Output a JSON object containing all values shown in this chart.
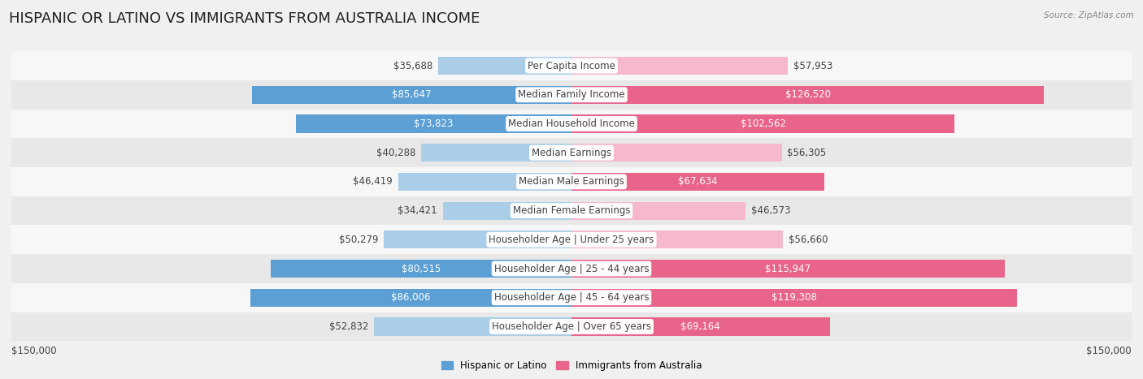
{
  "title": "HISPANIC OR LATINO VS IMMIGRANTS FROM AUSTRALIA INCOME",
  "source": "Source: ZipAtlas.com",
  "categories": [
    "Per Capita Income",
    "Median Family Income",
    "Median Household Income",
    "Median Earnings",
    "Median Male Earnings",
    "Median Female Earnings",
    "Householder Age | Under 25 years",
    "Householder Age | 25 - 44 years",
    "Householder Age | 45 - 64 years",
    "Householder Age | Over 65 years"
  ],
  "hispanic_values": [
    35688,
    85647,
    73823,
    40288,
    46419,
    34421,
    50279,
    80515,
    86006,
    52832
  ],
  "australia_values": [
    57953,
    126520,
    102562,
    56305,
    67634,
    46573,
    56660,
    115947,
    119308,
    69164
  ],
  "hispanic_light_color": "#aacde8",
  "hispanic_dark_color": "#5b9fd4",
  "australia_light_color": "#f5b8cc",
  "australia_dark_color": "#e8648a",
  "dark_threshold": 60000,
  "max_value": 150000,
  "xlabel_left": "$150,000",
  "xlabel_right": "$150,000",
  "legend_hispanic": "Hispanic or Latino",
  "legend_australia": "Immigrants from Australia",
  "bg_color": "#f0f0f0",
  "row_light_color": "#f7f7f7",
  "row_dark_color": "#e8e8e8",
  "title_fontsize": 13,
  "label_fontsize": 8.5,
  "value_fontsize": 8.5
}
